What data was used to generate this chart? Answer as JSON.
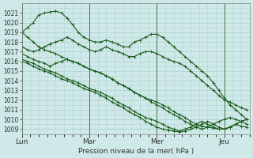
{
  "title": "Pression niveau de la mer( hPa )",
  "ylim": [
    1008.5,
    1022.0
  ],
  "yticks": [
    1009,
    1010,
    1011,
    1012,
    1013,
    1014,
    1015,
    1016,
    1017,
    1018,
    1019,
    1020,
    1021
  ],
  "xtick_labels": [
    "Lun",
    "Mar",
    "Mer",
    "Jeu"
  ],
  "xtick_positions": [
    0,
    48,
    96,
    144
  ],
  "xlim": [
    0,
    162
  ],
  "bg_color": "#cfe8e8",
  "grid_color": "#b0d4d4",
  "line_color": "#1a5c1a",
  "series": [
    {
      "x": [
        0,
        4,
        8,
        12,
        16,
        20,
        24,
        28,
        32,
        36,
        40,
        44,
        48,
        52,
        56,
        60,
        64,
        68,
        72,
        76,
        80,
        84,
        88,
        92,
        96,
        100,
        104,
        108,
        112,
        116,
        120,
        124,
        128,
        132,
        136,
        140,
        144,
        148,
        152,
        156,
        160
      ],
      "y": [
        1019.0,
        1019.5,
        1020.0,
        1020.8,
        1021.0,
        1021.1,
        1021.2,
        1021.0,
        1020.5,
        1019.8,
        1019.0,
        1018.5,
        1018.2,
        1018.0,
        1018.0,
        1018.2,
        1018.0,
        1017.8,
        1017.5,
        1017.5,
        1018.0,
        1018.2,
        1018.5,
        1018.8,
        1018.8,
        1018.5,
        1018.0,
        1017.5,
        1017.0,
        1016.5,
        1016.0,
        1015.5,
        1015.0,
        1014.5,
        1013.8,
        1013.0,
        1012.2,
        1011.5,
        1011.0,
        1010.5,
        1010.0
      ]
    },
    {
      "x": [
        0,
        4,
        8,
        12,
        16,
        20,
        24,
        28,
        32,
        36,
        40,
        44,
        48,
        52,
        56,
        60,
        64,
        68,
        72,
        76,
        80,
        84,
        88,
        92,
        96,
        100,
        104,
        108,
        112,
        116,
        120,
        124,
        128,
        132,
        136,
        140,
        144,
        148,
        152,
        156,
        160
      ],
      "y": [
        1017.5,
        1017.2,
        1017.0,
        1017.2,
        1017.5,
        1017.8,
        1018.0,
        1018.2,
        1018.5,
        1018.2,
        1017.8,
        1017.5,
        1017.2,
        1017.0,
        1017.2,
        1017.5,
        1017.2,
        1017.0,
        1016.8,
        1016.5,
        1016.5,
        1016.8,
        1017.0,
        1017.0,
        1016.8,
        1016.5,
        1016.2,
        1016.0,
        1015.8,
        1015.5,
        1015.0,
        1014.5,
        1014.0,
        1013.5,
        1013.0,
        1012.5,
        1012.0,
        1011.8,
        1011.5,
        1011.2,
        1011.0
      ]
    },
    {
      "x": [
        0,
        4,
        8,
        12,
        16,
        20,
        24,
        28,
        32,
        36,
        40,
        44,
        48,
        52,
        56,
        60,
        64,
        68,
        72,
        76,
        80,
        84,
        88,
        92,
        96,
        100,
        104,
        108,
        112,
        116,
        120,
        124,
        128,
        132,
        136,
        140,
        144,
        148,
        152,
        156,
        160
      ],
      "y": [
        1016.8,
        1016.5,
        1016.2,
        1016.0,
        1015.8,
        1015.5,
        1015.8,
        1016.0,
        1016.2,
        1016.0,
        1015.8,
        1015.5,
        1015.2,
        1015.0,
        1014.8,
        1014.5,
        1014.2,
        1013.8,
        1013.5,
        1013.2,
        1012.8,
        1012.5,
        1012.2,
        1012.0,
        1011.8,
        1011.5,
        1011.2,
        1010.8,
        1010.5,
        1010.2,
        1009.8,
        1009.5,
        1009.3,
        1009.2,
        1009.1,
        1009.0,
        1009.0,
        1009.2,
        1009.5,
        1009.3,
        1009.2
      ]
    },
    {
      "x": [
        0,
        4,
        8,
        12,
        16,
        20,
        24,
        28,
        32,
        36,
        40,
        44,
        48,
        52,
        56,
        60,
        64,
        68,
        72,
        76,
        80,
        84,
        88,
        92,
        96,
        100,
        104,
        108,
        112,
        116,
        120,
        124,
        128,
        132,
        136,
        140,
        144,
        148,
        152,
        156,
        160
      ],
      "y": [
        1016.2,
        1016.0,
        1015.8,
        1015.5,
        1015.2,
        1015.0,
        1014.8,
        1014.5,
        1014.2,
        1014.0,
        1013.8,
        1013.5,
        1013.2,
        1013.0,
        1012.8,
        1012.5,
        1012.2,
        1011.8,
        1011.5,
        1011.2,
        1010.8,
        1010.5,
        1010.2,
        1010.0,
        1009.8,
        1009.5,
        1009.2,
        1009.0,
        1008.8,
        1009.0,
        1009.2,
        1009.5,
        1009.8,
        1009.5,
        1009.2,
        1009.0,
        1009.0,
        1009.2,
        1009.5,
        1009.8,
        1010.0
      ]
    },
    {
      "x": [
        0,
        4,
        8,
        12,
        16,
        20,
        24,
        28,
        32,
        36,
        40,
        44,
        48,
        52,
        56,
        60,
        64,
        68,
        72,
        76,
        80,
        84,
        88,
        92,
        96,
        100,
        104,
        108,
        112,
        116,
        120,
        124,
        128,
        132,
        136,
        140,
        144,
        148,
        152,
        156,
        160
      ],
      "y": [
        1016.0,
        1015.8,
        1015.5,
        1015.2,
        1015.0,
        1014.8,
        1014.5,
        1014.2,
        1014.0,
        1013.8,
        1013.5,
        1013.2,
        1013.0,
        1012.8,
        1012.5,
        1012.2,
        1011.8,
        1011.5,
        1011.2,
        1010.8,
        1010.5,
        1010.2,
        1009.8,
        1009.5,
        1009.2,
        1009.0,
        1008.9,
        1008.8,
        1008.7,
        1008.8,
        1009.0,
        1009.2,
        1009.5,
        1009.8,
        1009.5,
        1009.2,
        1009.0,
        1009.2,
        1009.5,
        1009.8,
        1010.0
      ]
    },
    {
      "x": [
        0,
        4,
        8,
        12,
        16,
        20,
        24,
        28,
        32,
        36,
        40,
        44,
        48,
        52,
        56,
        60,
        64,
        68,
        72,
        76,
        80,
        84,
        88,
        92,
        96,
        100,
        104,
        108,
        112,
        116,
        120,
        124,
        128,
        132,
        136,
        140,
        144,
        148,
        152,
        156,
        160
      ],
      "y": [
        1019.0,
        1018.5,
        1018.0,
        1017.5,
        1017.2,
        1017.0,
        1016.8,
        1016.5,
        1016.2,
        1016.0,
        1015.8,
        1015.5,
        1015.2,
        1015.0,
        1014.8,
        1014.5,
        1014.2,
        1013.8,
        1013.5,
        1013.2,
        1012.8,
        1012.5,
        1012.2,
        1011.8,
        1011.5,
        1011.2,
        1010.8,
        1010.5,
        1010.2,
        1009.8,
        1009.5,
        1009.2,
        1009.0,
        1009.2,
        1009.5,
        1009.8,
        1010.0,
        1010.2,
        1010.0,
        1009.8,
        1009.5
      ]
    }
  ]
}
